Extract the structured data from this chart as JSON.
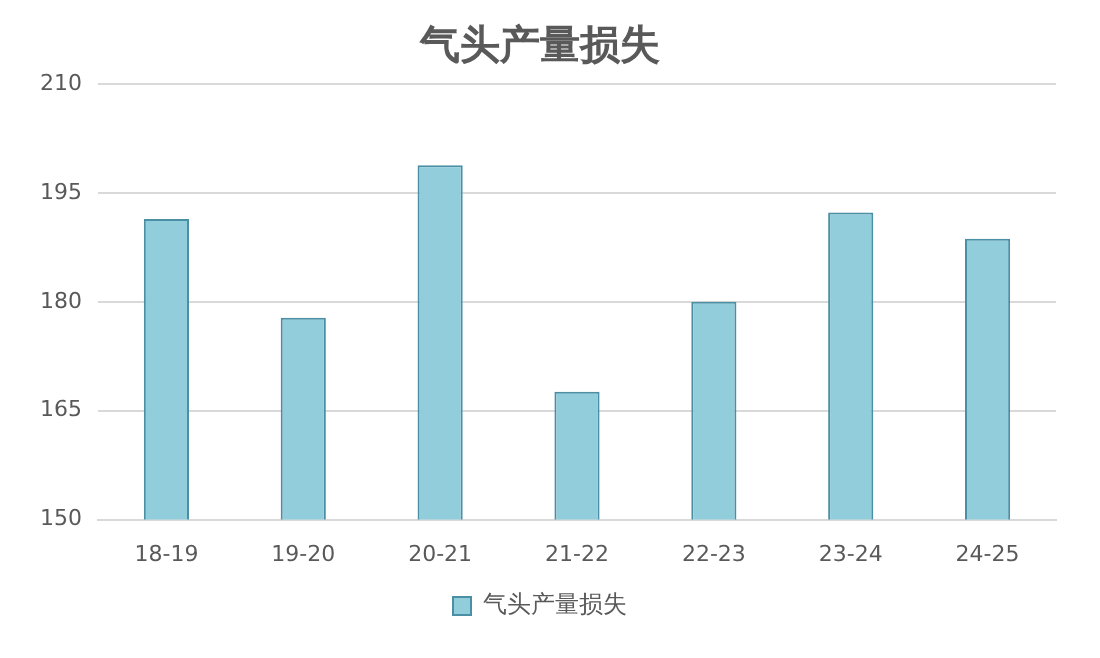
{
  "chart_data": {
    "type": "bar",
    "title": "气头产量损失",
    "categories": [
      "18-19",
      "19-20",
      "20-21",
      "21-22",
      "22-23",
      "23-24",
      "24-25"
    ],
    "series": [
      {
        "name": "气头产量损失",
        "color": "#92cddc",
        "values": [
          191.4,
          177.8,
          198.8,
          167.6,
          180,
          192.3,
          188.7
        ]
      }
    ],
    "ylim": [
      150,
      210
    ],
    "yticks": [
      150,
      165,
      180,
      195,
      210
    ],
    "grid": "y",
    "legend": "bottom"
  }
}
